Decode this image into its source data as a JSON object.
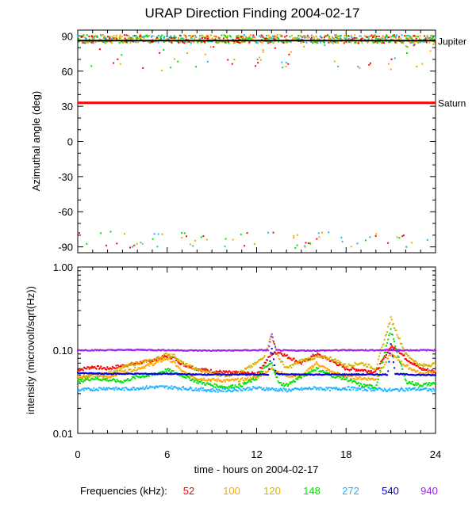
{
  "chart_data": [
    {
      "type": "scatter",
      "title": "URAP Direction Finding  2004-02-17",
      "ylabel": "Azimuthal angle (deg)",
      "ylim": [
        -95,
        95
      ],
      "yticks": [
        90,
        60,
        30,
        0,
        -30,
        -60,
        -90
      ],
      "xlim": [
        0,
        24
      ],
      "grid": false,
      "reference_lines": [
        {
          "label": "Jupiter",
          "y": 86,
          "color": "#000000"
        },
        {
          "label": "Saturn",
          "y": 33,
          "color": "#ff0000"
        }
      ],
      "point_clusters": [
        {
          "description_x": [
            0,
            24
          ],
          "y_center": 88,
          "note": "dense multi-frequency points near Jupiter"
        },
        {
          "description_x": [
            0,
            24
          ],
          "y_center": -90,
          "note": "sparse points near -90"
        }
      ]
    },
    {
      "type": "line",
      "ylabel": "intensity (microvolt/sqrt(Hz))",
      "yscale": "log",
      "ylim": [
        0.01,
        1.0
      ],
      "yticks": [
        "0.01",
        "0.10",
        "1.00"
      ],
      "xlabel": "time - hours on 2004-02-17",
      "xlim": [
        0,
        24
      ],
      "xticks": [
        0,
        6,
        12,
        18,
        24
      ],
      "legend_label": "Frequencies (kHz):",
      "series": [
        {
          "name": "52",
          "color": "#ff0000",
          "x": [
            0,
            1,
            2,
            3,
            4,
            5,
            6,
            6.5,
            7,
            8,
            9,
            10,
            11,
            12,
            13,
            13.5,
            14,
            15,
            16,
            17,
            18,
            19,
            20,
            21,
            21.5,
            22,
            23,
            24
          ],
          "values": [
            0.058,
            0.063,
            0.06,
            0.065,
            0.07,
            0.075,
            0.085,
            0.08,
            0.068,
            0.06,
            0.056,
            0.054,
            0.053,
            0.052,
            0.09,
            0.095,
            0.085,
            0.07,
            0.09,
            0.075,
            0.06,
            0.058,
            0.055,
            0.11,
            0.1,
            0.08,
            0.06,
            0.055
          ]
        },
        {
          "name": "100",
          "color": "#ffa500",
          "x": [
            0,
            1,
            2,
            3,
            4,
            5,
            6,
            6.5,
            7,
            8,
            9,
            10,
            11,
            12,
            13,
            14,
            15,
            16,
            17,
            18,
            19,
            20,
            21,
            22,
            23,
            24
          ],
          "values": [
            0.048,
            0.05,
            0.047,
            0.055,
            0.06,
            0.068,
            0.08,
            0.07,
            0.055,
            0.046,
            0.044,
            0.043,
            0.044,
            0.047,
            0.06,
            0.05,
            0.048,
            0.07,
            0.055,
            0.048,
            0.046,
            0.045,
            0.09,
            0.065,
            0.052,
            0.055
          ]
        },
        {
          "name": "120",
          "color": "#d2b400",
          "x": [
            0,
            1,
            2,
            3,
            4,
            5,
            6,
            6.5,
            7,
            8,
            9,
            10,
            11,
            12,
            12.5,
            13,
            13.5,
            14,
            15,
            16,
            17,
            18,
            19,
            20,
            21,
            22,
            23,
            24
          ],
          "values": [
            0.045,
            0.05,
            0.052,
            0.062,
            0.07,
            0.075,
            0.09,
            0.085,
            0.07,
            0.058,
            0.052,
            0.05,
            0.055,
            0.07,
            0.085,
            0.15,
            0.08,
            0.06,
            0.075,
            0.082,
            0.08,
            0.065,
            0.07,
            0.06,
            0.24,
            0.09,
            0.065,
            0.068
          ]
        },
        {
          "name": "148",
          "color": "#00e000",
          "x": [
            0,
            1,
            2,
            3,
            4,
            5,
            6,
            7,
            8,
            9,
            10,
            11,
            12,
            12.5,
            13,
            13.5,
            14,
            15,
            16,
            17,
            18,
            19,
            20,
            21,
            22,
            23,
            24
          ],
          "values": [
            0.042,
            0.046,
            0.044,
            0.042,
            0.048,
            0.05,
            0.058,
            0.05,
            0.042,
            0.038,
            0.036,
            0.038,
            0.046,
            0.06,
            0.07,
            0.04,
            0.038,
            0.048,
            0.06,
            0.05,
            0.045,
            0.038,
            0.036,
            0.175,
            0.042,
            0.038,
            0.04
          ]
        },
        {
          "name": "272",
          "color": "#1fb4ff",
          "x": [
            0,
            1,
            2,
            3,
            4,
            5,
            6,
            7,
            8,
            9,
            10,
            11,
            12,
            13,
            14,
            15,
            16,
            17,
            18,
            19,
            20,
            21,
            22,
            23,
            24
          ],
          "values": [
            0.033,
            0.034,
            0.035,
            0.034,
            0.035,
            0.036,
            0.036,
            0.035,
            0.034,
            0.033,
            0.033,
            0.034,
            0.035,
            0.034,
            0.033,
            0.034,
            0.035,
            0.034,
            0.035,
            0.034,
            0.034,
            0.033,
            0.034,
            0.034,
            0.033
          ]
        },
        {
          "name": "540",
          "color": "#0000e0",
          "x": [
            0,
            2,
            4,
            6,
            8,
            10,
            12,
            12.8,
            13,
            13.3,
            14,
            16,
            18,
            20,
            20.8,
            21,
            21.3,
            22,
            24
          ],
          "values": [
            0.053,
            0.052,
            0.052,
            0.052,
            0.051,
            0.051,
            0.051,
            0.051,
            0.11,
            0.052,
            0.051,
            0.051,
            0.051,
            0.051,
            0.051,
            0.12,
            0.052,
            0.051,
            0.05
          ]
        },
        {
          "name": "940",
          "color": "#a020f0",
          "x": [
            0,
            2,
            4,
            6,
            8,
            10,
            12,
            12.8,
            13,
            13.3,
            14,
            16,
            18,
            20,
            24
          ],
          "values": [
            0.1,
            0.1,
            0.101,
            0.1,
            0.099,
            0.099,
            0.1,
            0.1,
            0.16,
            0.1,
            0.099,
            0.099,
            0.1,
            0.1,
            0.1
          ]
        }
      ]
    }
  ]
}
